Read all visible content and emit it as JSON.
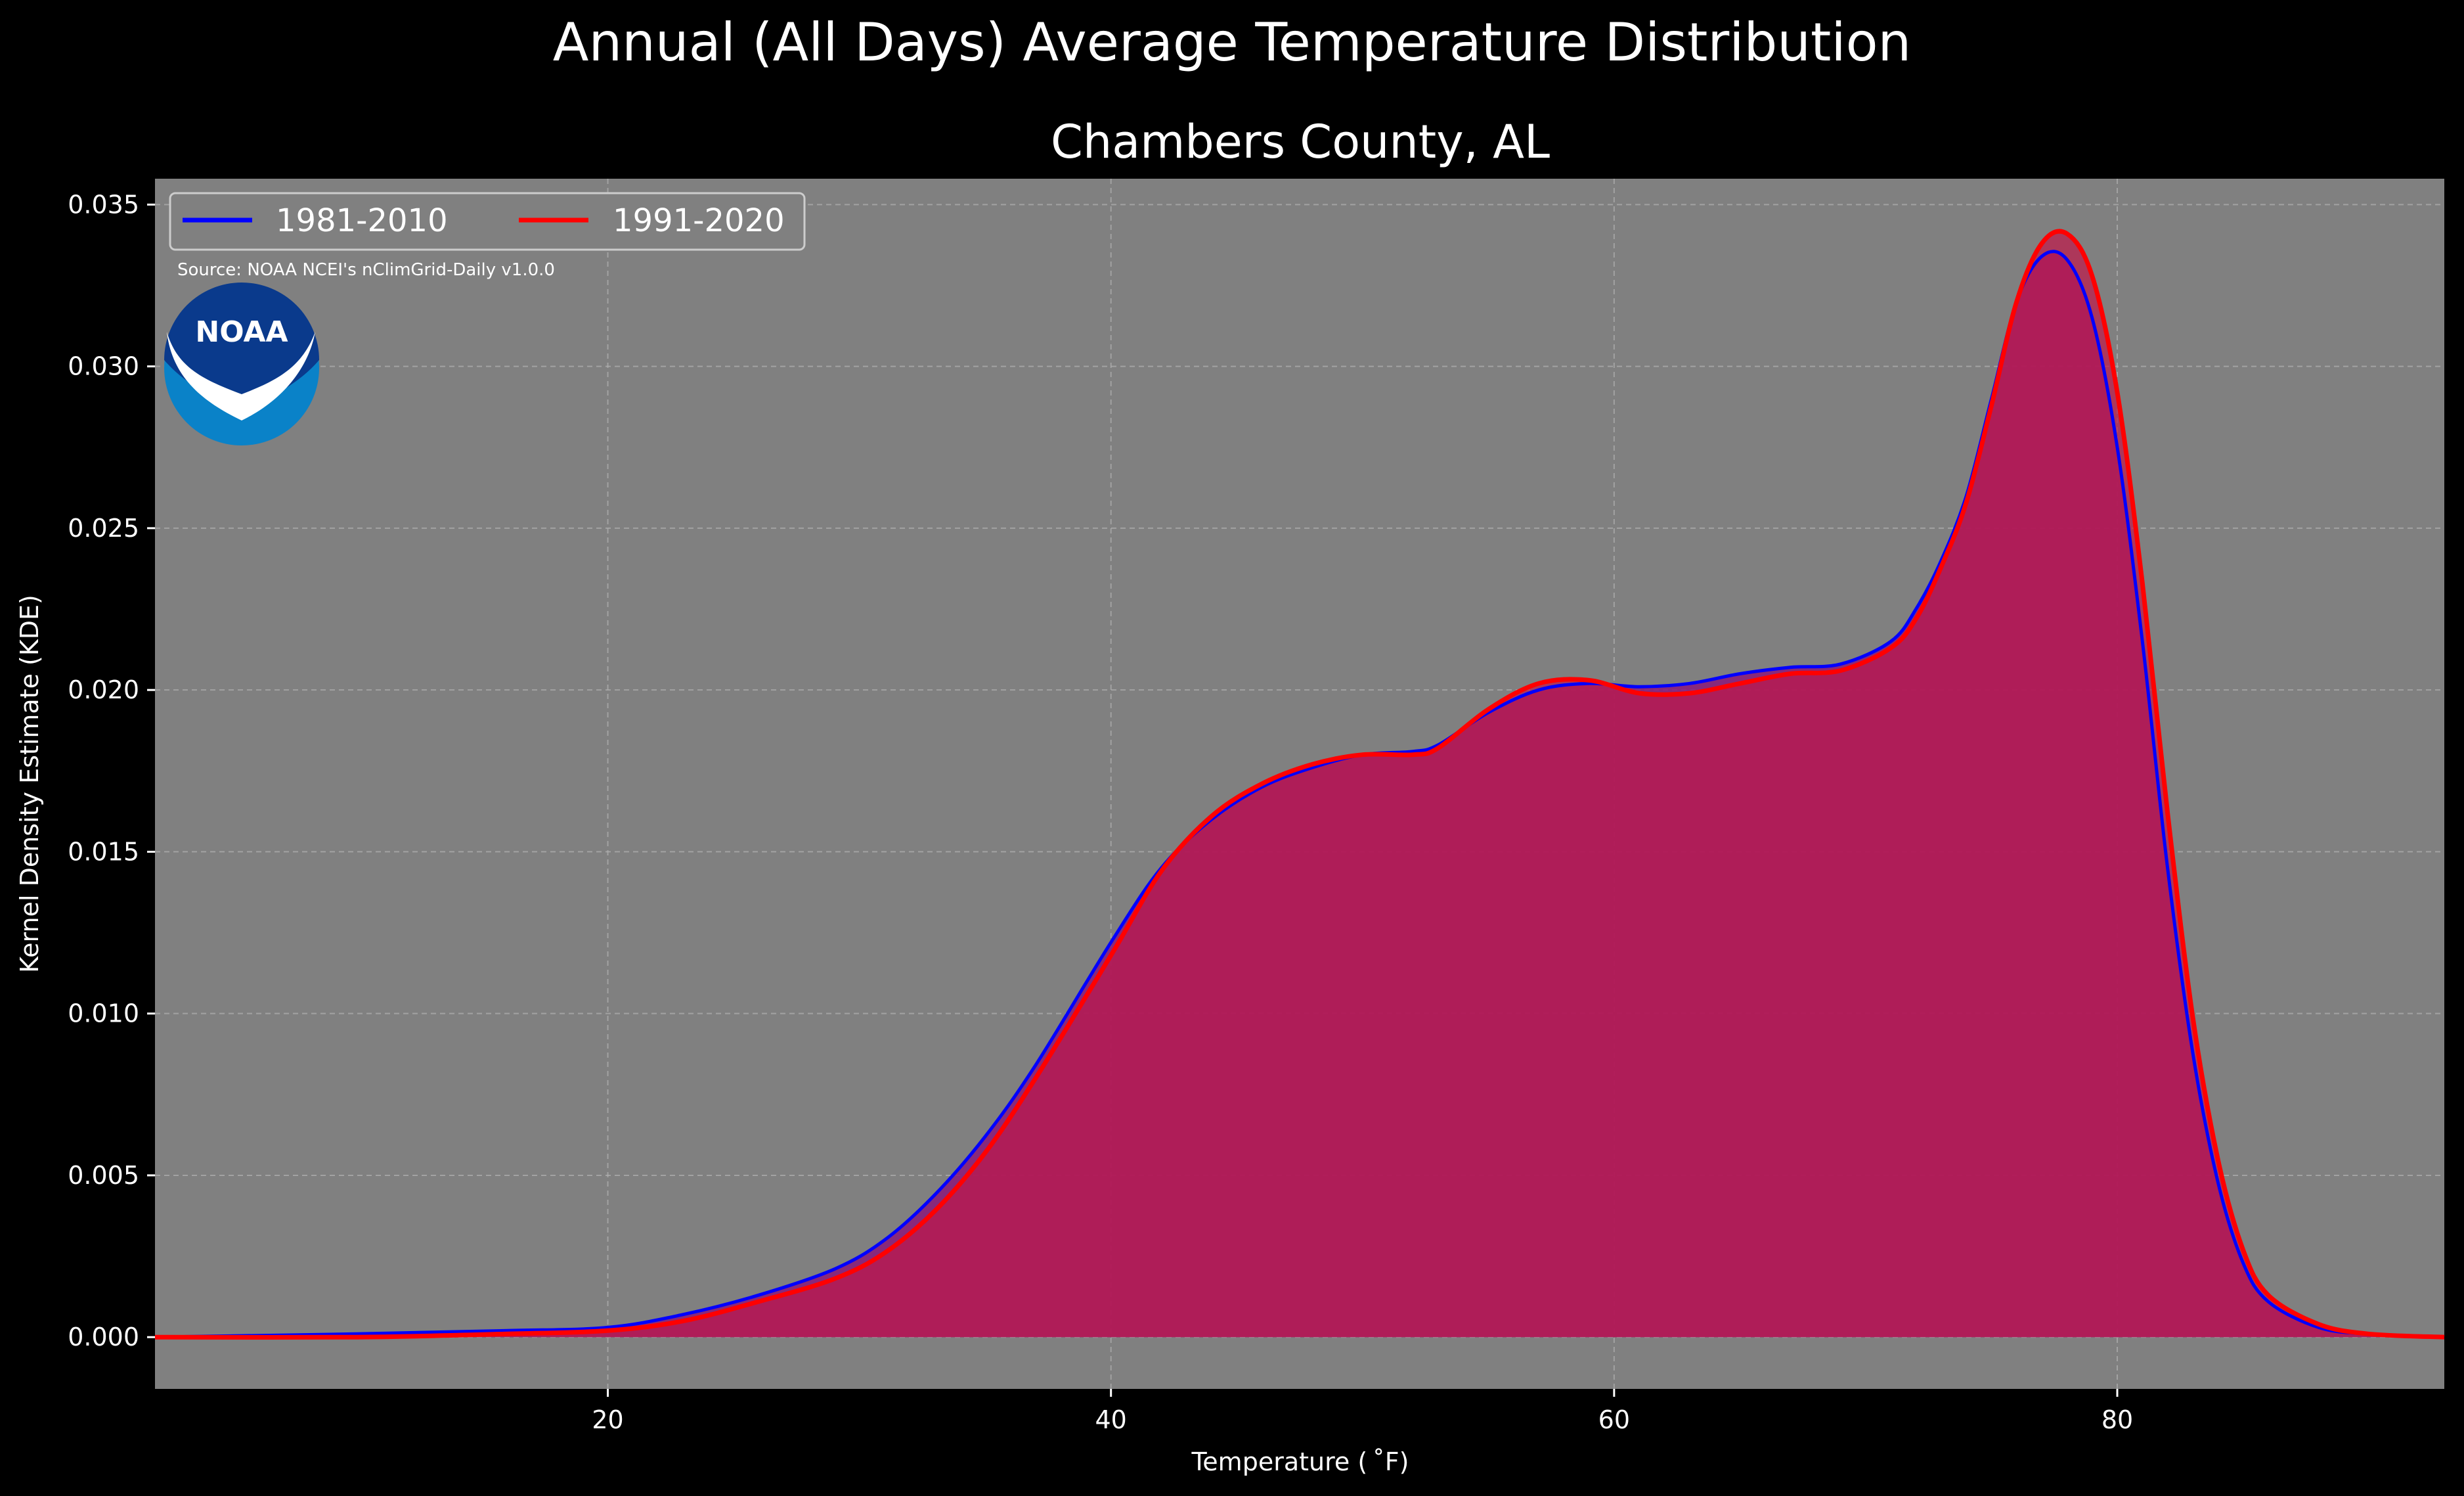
{
  "chart_data": {
    "type": "area",
    "suptitle": "Annual (All Days) Average Temperature Distribution",
    "title": "Chambers County, AL",
    "xlabel": "Temperature ( ˚F)",
    "ylabel": "Kernel Density Estimate (KDE)",
    "xlim": [
      2,
      93
    ],
    "ylim": [
      -0.0016,
      0.0358
    ],
    "xticks": [
      20,
      40,
      60,
      80
    ],
    "xtick_labels": [
      "20",
      "40",
      "60",
      "80"
    ],
    "yticks": [
      0.0,
      0.005,
      0.01,
      0.015,
      0.02,
      0.025,
      0.03,
      0.035
    ],
    "ytick_labels": [
      "0.000",
      "0.005",
      "0.010",
      "0.015",
      "0.020",
      "0.025",
      "0.030",
      "0.035"
    ],
    "grid": true,
    "legend_position": "top-left",
    "source": "Source: NOAA NCEI's nClimGrid-Daily v1.0.0",
    "logo_text": "NOAA",
    "background": "#808080",
    "series": [
      {
        "name": "1981-2010",
        "color": "#0000ff",
        "fill": "#8a1a7a",
        "x": [
          2,
          10,
          16,
          20,
          23,
          26,
          29,
          31,
          33,
          35,
          37,
          40,
          42,
          44,
          46,
          48,
          50,
          52,
          53,
          55,
          57,
          59,
          61,
          63,
          65,
          67,
          69,
          71,
          72,
          73,
          74,
          75,
          76,
          77,
          78,
          79,
          80,
          81,
          82,
          83,
          84,
          85,
          86,
          88,
          90,
          93
        ],
        "y": [
          0.0,
          0.0001,
          0.0002,
          0.0003,
          0.0007,
          0.0013,
          0.0021,
          0.003,
          0.0044,
          0.0062,
          0.0084,
          0.0122,
          0.0145,
          0.016,
          0.017,
          0.0176,
          0.018,
          0.0181,
          0.0183,
          0.0193,
          0.02,
          0.0202,
          0.0201,
          0.0202,
          0.0205,
          0.0207,
          0.0208,
          0.0215,
          0.0225,
          0.024,
          0.026,
          0.029,
          0.032,
          0.0334,
          0.0333,
          0.0315,
          0.0275,
          0.0215,
          0.0145,
          0.0088,
          0.0048,
          0.0023,
          0.0011,
          0.0003,
          0.0001,
          0.0
        ]
      },
      {
        "name": "1991-2020",
        "color": "#ff0000",
        "fill": "#c0184a",
        "x": [
          2,
          10,
          16,
          20,
          23,
          26,
          29,
          31,
          33,
          35,
          37,
          40,
          42,
          44,
          46,
          48,
          50,
          52,
          53,
          55,
          57,
          59,
          61,
          63,
          65,
          67,
          69,
          71,
          72,
          73,
          74,
          75,
          76,
          77,
          78,
          79,
          80,
          81,
          82,
          83,
          84,
          85,
          86,
          88,
          90,
          93
        ],
        "y": [
          0.0,
          0.0,
          0.0001,
          0.0002,
          0.0005,
          0.0011,
          0.0018,
          0.0026,
          0.0039,
          0.0057,
          0.008,
          0.0118,
          0.0144,
          0.0161,
          0.0171,
          0.0177,
          0.018,
          0.018,
          0.0182,
          0.0194,
          0.0202,
          0.0203,
          0.0199,
          0.0199,
          0.0202,
          0.0205,
          0.0206,
          0.0213,
          0.0222,
          0.0238,
          0.0258,
          0.0288,
          0.032,
          0.0338,
          0.0341,
          0.0328,
          0.0292,
          0.0233,
          0.0162,
          0.0099,
          0.0055,
          0.0027,
          0.0013,
          0.0004,
          0.0001,
          0.0
        ]
      }
    ]
  }
}
